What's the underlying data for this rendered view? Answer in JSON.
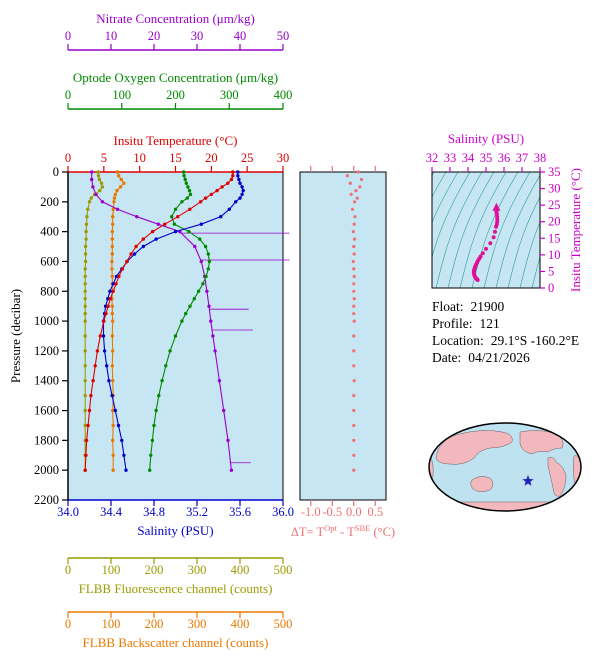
{
  "colors": {
    "nitrate": "#9900CC",
    "oxygen": "#008A00",
    "temperature": "#DD0000",
    "salinity": "#0000CC",
    "fluorescence": "#9B9B00",
    "backscatter": "#E87800",
    "delta_t": "#F07070",
    "ts": "#CC00CC",
    "ts_dots": "#E0109A",
    "plot_bg": "#C7E6F4",
    "contour": "#2E9A9A",
    "map_land": "#F2B8BE",
    "map_ocean": "#BFE2F0",
    "star": "#2222BB"
  },
  "float_info": {
    "rows": [
      {
        "label": "Float:",
        "value": "21900"
      },
      {
        "label": "Profile:",
        "value": "121"
      },
      {
        "label": "Location:",
        "value": "29.1°S  -160.2°E"
      },
      {
        "label": "Date:",
        "value": "04/21/2026"
      }
    ]
  },
  "chart_data": {
    "type": "line",
    "description": "Argo/SOCCOM float vertical profiles versus pressure, plus temperature-difference panel, T-S diagram and float location map",
    "pressure_axis": {
      "label": "Pressure (decibar)",
      "range": [
        0,
        2200
      ],
      "ticks": [
        0,
        200,
        400,
        600,
        800,
        1000,
        1200,
        1400,
        1600,
        1800,
        2000,
        2200
      ]
    },
    "pressure_levels": [
      0,
      25,
      50,
      75,
      100,
      125,
      150,
      175,
      200,
      250,
      300,
      350,
      400,
      450,
      500,
      550,
      600,
      650,
      700,
      750,
      800,
      850,
      900,
      950,
      1000,
      1100,
      1200,
      1300,
      1400,
      1500,
      1600,
      1700,
      1800,
      1900,
      2000
    ],
    "series": {
      "nitrate": {
        "label": "Nitrate Concentration (μm/kg)",
        "range": [
          0,
          50
        ],
        "ticks": [
          "0",
          "10",
          "20",
          "30",
          "40",
          "50"
        ],
        "pressure": [
          0,
          50,
          100,
          150,
          200,
          250,
          300,
          350,
          400,
          500,
          600,
          700,
          800,
          900,
          1000,
          1100,
          1200,
          1400,
          1600,
          1800,
          2000
        ],
        "values": [
          5.5,
          5.5,
          5.8,
          6.5,
          8.0,
          11.5,
          16.0,
          21.0,
          26.0,
          29.5,
          31.0,
          31.8,
          32.3,
          32.8,
          33.2,
          33.7,
          34.2,
          35.2,
          36.2,
          37.2,
          38.0
        ],
        "spikes": [
          {
            "pressure": 410,
            "from": 26.0,
            "to": 51.5
          },
          {
            "pressure": 590,
            "from": 31.0,
            "to": 51.5
          },
          {
            "pressure": 920,
            "from": 32.8,
            "to": 42.0
          },
          {
            "pressure": 1060,
            "from": 33.4,
            "to": 43.0
          },
          {
            "pressure": 1950,
            "from": 37.6,
            "to": 42.5
          }
        ]
      },
      "oxygen": {
        "label": "Optode Oxygen Concentration (μm/kg)",
        "range": [
          0,
          400
        ],
        "ticks": [
          "0",
          "100",
          "200",
          "300",
          "400"
        ],
        "values": [
          215,
          216,
          218,
          220,
          223,
          226,
          228,
          222,
          212,
          200,
          193,
          198,
          225,
          245,
          256,
          261,
          263,
          261,
          257,
          251,
          243,
          235,
          227,
          219,
          212,
          200,
          190,
          182,
          175,
          169,
          164,
          160,
          157,
          154,
          152
        ]
      },
      "temperature": {
        "label": "Insitu Temperature (°C)",
        "range": [
          0,
          30
        ],
        "ticks": [
          "0",
          "5",
          "10",
          "15",
          "20",
          "25",
          "30"
        ],
        "values": [
          23.0,
          23.0,
          22.8,
          22.3,
          21.5,
          20.8,
          20.0,
          19.2,
          18.5,
          17.0,
          15.3,
          13.5,
          11.8,
          10.5,
          9.5,
          8.8,
          8.2,
          7.6,
          7.1,
          6.7,
          6.3,
          5.9,
          5.6,
          5.3,
          5.0,
          4.5,
          4.1,
          3.8,
          3.5,
          3.2,
          3.0,
          2.8,
          2.6,
          2.5,
          2.4
        ]
      },
      "salinity": {
        "label": "Salinity (PSU)",
        "range": [
          34,
          36
        ],
        "ticks": [
          "34.0",
          "34.4",
          "34.8",
          "35.2",
          "35.6",
          "36.0"
        ],
        "values": [
          35.58,
          35.58,
          35.59,
          35.6,
          35.62,
          35.63,
          35.62,
          35.6,
          35.56,
          35.5,
          35.42,
          35.24,
          35.0,
          34.82,
          34.7,
          34.62,
          34.55,
          34.5,
          34.45,
          34.42,
          34.39,
          34.37,
          34.35,
          34.34,
          34.33,
          34.33,
          34.34,
          34.36,
          34.38,
          34.41,
          34.44,
          34.47,
          34.5,
          34.52,
          34.54
        ]
      },
      "fluorescence": {
        "label": "FLBB Fluorescence channel (counts)",
        "range": [
          0,
          500
        ],
        "ticks": [
          "0",
          "100",
          "200",
          "300",
          "400",
          "500"
        ],
        "values": [
          70,
          71,
          73,
          78,
          80,
          74,
          62,
          54,
          50,
          46,
          44,
          43,
          42,
          42,
          41,
          41,
          41,
          40,
          40,
          40,
          40,
          40,
          40,
          40,
          40,
          40,
          40,
          40,
          40,
          40,
          40,
          40,
          40,
          40,
          40
        ]
      },
      "backscatter": {
        "label": "FLBB Backscatter channel (counts)",
        "range": [
          0,
          500
        ],
        "ticks": [
          "0",
          "100",
          "200",
          "300",
          "400",
          "500"
        ],
        "values": [
          115,
          118,
          124,
          130,
          122,
          114,
          110,
          108,
          107,
          105,
          104,
          104,
          103,
          103,
          103,
          103,
          102,
          102,
          103,
          103,
          103,
          102,
          103,
          103,
          104,
          103,
          104,
          103,
          104,
          105,
          104,
          105,
          104,
          105,
          105
        ]
      }
    },
    "delta_t": {
      "label_pre": "ΔT= T",
      "label_sup1": "Opt",
      "label_mid": " - T",
      "label_sup2": "SBE",
      "label_post": " (°C)",
      "range": [
        -1.25,
        0.75
      ],
      "ticks": [
        "-1.0",
        "-0.5",
        "0.0",
        "0.5"
      ],
      "values": [
        0.1,
        -0.15,
        0.18,
        -0.08,
        0.14,
        0.05,
        -0.06,
        0.08,
        0.02,
        -0.03,
        0.03,
        0.01,
        -0.01,
        0.02,
        0.0,
        0.01,
        -0.01,
        0.0,
        0.01,
        0.0,
        0.0,
        0.01,
        0.0,
        0.0,
        0.01,
        0.0,
        0.0,
        0.0,
        0.01,
        0.0,
        0.0,
        0.0,
        0.0,
        0.0,
        0.0
      ]
    },
    "ts_diagram": {
      "sal_label": "Salinity (PSU)",
      "temp_label": "Insitu Temperature (°C)",
      "sal_range": [
        32,
        38
      ],
      "sal_ticks": [
        "32",
        "33",
        "34",
        "35",
        "36",
        "37",
        "38"
      ],
      "temp_range": [
        0,
        35
      ],
      "temp_ticks": [
        "0",
        "5",
        "10",
        "15",
        "20",
        "25",
        "30",
        "35"
      ]
    }
  }
}
